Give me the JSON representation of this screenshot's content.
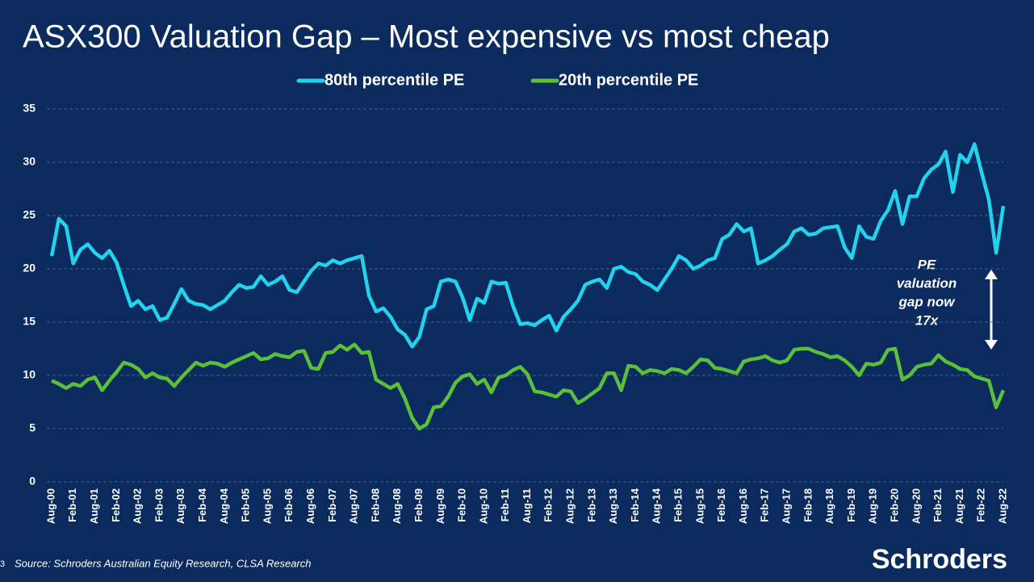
{
  "chart_data": {
    "type": "line",
    "title": "ASX300 Valuation Gap – Most expensive vs most cheap",
    "categories": [
      "Aug-00",
      null,
      null,
      "Feb-01",
      null,
      null,
      "Aug-01",
      null,
      null,
      "Feb-02",
      null,
      null,
      "Aug-02",
      null,
      null,
      "Feb-03",
      null,
      null,
      "Aug-03",
      null,
      null,
      "Feb-04",
      null,
      null,
      "Aug-04",
      null,
      null,
      "Feb-05",
      null,
      null,
      "Aug-05",
      null,
      null,
      "Feb-06",
      null,
      null,
      "Aug-06",
      null,
      null,
      "Feb-07",
      null,
      null,
      "Aug-07",
      null,
      null,
      "Feb-08",
      null,
      null,
      "Aug-08",
      null,
      null,
      "Feb-09",
      null,
      null,
      "Aug-09",
      null,
      null,
      "Feb-10",
      null,
      null,
      "Aug-10",
      null,
      null,
      "Feb-11",
      null,
      null,
      "Aug-11",
      null,
      null,
      "Feb-12",
      null,
      null,
      "Aug-12",
      null,
      null,
      "Feb-13",
      null,
      null,
      "Aug-13",
      null,
      null,
      "Feb-14",
      null,
      null,
      "Aug-14",
      null,
      null,
      "Feb-15",
      null,
      null,
      "Aug-15",
      null,
      null,
      "Feb-16",
      null,
      null,
      "Aug-16",
      null,
      null,
      "Feb-17",
      null,
      null,
      "Aug-17",
      null,
      null,
      "Feb-18",
      null,
      null,
      "Aug-18",
      null,
      null,
      "Feb-19",
      null,
      null,
      "Aug-19",
      null,
      null,
      "Feb-20",
      null,
      null,
      "Aug-20",
      null,
      null,
      "Feb-21",
      null,
      null,
      "Aug-21",
      null,
      null,
      "Feb-22",
      null,
      null,
      "Aug-22"
    ],
    "series": [
      {
        "name": "80th percentile PE",
        "color": "#22d3ee",
        "values": [
          21.2,
          24.7,
          24.0,
          20.5,
          21.8,
          22.3,
          21.5,
          21.0,
          21.7,
          20.6,
          18.5,
          16.5,
          17.0,
          16.2,
          16.5,
          15.2,
          15.4,
          16.7,
          18.1,
          17.0,
          16.7,
          16.6,
          16.2,
          16.6,
          17.0,
          17.8,
          18.5,
          18.2,
          18.3,
          19.3,
          18.5,
          18.8,
          19.3,
          18.0,
          17.8,
          18.8,
          19.8,
          20.5,
          20.3,
          20.8,
          20.5,
          20.8,
          21.0,
          21.2,
          17.5,
          16.0,
          16.3,
          15.5,
          14.3,
          13.8,
          12.7,
          13.6,
          16.2,
          16.5,
          18.8,
          19.0,
          18.8,
          17.3,
          15.2,
          17.2,
          16.8,
          18.8,
          18.6,
          18.7,
          16.5,
          14.8,
          14.9,
          14.7,
          15.2,
          15.6,
          14.2,
          15.5,
          16.2,
          17.0,
          18.5,
          18.8,
          19.0,
          18.2,
          20.0,
          20.2,
          19.7,
          19.5,
          18.8,
          18.5,
          18.0,
          19.0,
          20.0,
          21.2,
          20.8,
          20.0,
          20.3,
          20.8,
          21.0,
          22.8,
          23.2,
          24.2,
          23.5,
          23.8,
          20.5,
          20.8,
          21.2,
          21.8,
          22.3,
          23.5,
          23.8,
          23.2,
          23.3,
          23.8,
          23.9,
          24.0,
          22.0,
          21.0,
          24.0,
          23.0,
          22.8,
          24.5,
          25.5,
          27.3,
          24.2,
          26.8,
          26.8,
          28.5,
          29.3,
          29.8,
          31.0,
          27.2,
          30.7,
          30.0,
          31.7,
          29.0,
          26.5,
          21.5,
          25.9
        ]
      },
      {
        "name": "20th percentile PE",
        "color": "#5cbf3a",
        "values": [
          9.5,
          9.2,
          8.8,
          9.2,
          9.0,
          9.6,
          9.8,
          8.6,
          9.5,
          10.3,
          11.2,
          11.0,
          10.6,
          9.8,
          10.2,
          9.8,
          9.7,
          9.0,
          9.8,
          10.5,
          11.2,
          10.9,
          11.2,
          11.1,
          10.8,
          11.2,
          11.5,
          11.8,
          12.1,
          11.5,
          11.6,
          12.0,
          11.8,
          11.7,
          12.2,
          12.3,
          10.7,
          10.6,
          12.1,
          12.2,
          12.8,
          12.4,
          12.9,
          12.1,
          12.2,
          9.6,
          9.2,
          8.8,
          9.2,
          7.8,
          6.0,
          5.0,
          5.4,
          7.0,
          7.1,
          8.0,
          9.3,
          9.9,
          10.1,
          9.2,
          9.6,
          8.4,
          9.8,
          10.0,
          10.5,
          10.8,
          10.1,
          8.5,
          8.4,
          8.2,
          8.0,
          8.6,
          8.5,
          7.4,
          7.8,
          8.3,
          8.8,
          10.2,
          10.2,
          8.6,
          10.9,
          10.8,
          10.2,
          10.5,
          10.4,
          10.2,
          10.6,
          10.5,
          10.2,
          10.8,
          11.5,
          11.4,
          10.7,
          10.6,
          10.4,
          10.2,
          11.3,
          11.5,
          11.6,
          11.8,
          11.4,
          11.2,
          11.4,
          12.4,
          12.5,
          12.5,
          12.2,
          12.0,
          11.7,
          11.8,
          11.4,
          10.8,
          10.0,
          11.1,
          11.0,
          11.2,
          12.4,
          12.5,
          9.6,
          10.0,
          10.8,
          11.0,
          11.1,
          11.9,
          11.3,
          11.0,
          10.6,
          10.5,
          9.9,
          9.7,
          9.5,
          7.0,
          8.6
        ]
      }
    ],
    "ylim": [
      0,
      35
    ],
    "yticks": [
      0,
      5,
      10,
      15,
      20,
      25,
      30,
      35
    ],
    "grid": true,
    "annotation": [
      "PE",
      "valuation",
      "gap now",
      "17x"
    ]
  },
  "footer": {
    "source": "Source: Schroders Australian Equity Research, CLSA Research",
    "brand": "Schroders",
    "page_number": "3"
  }
}
